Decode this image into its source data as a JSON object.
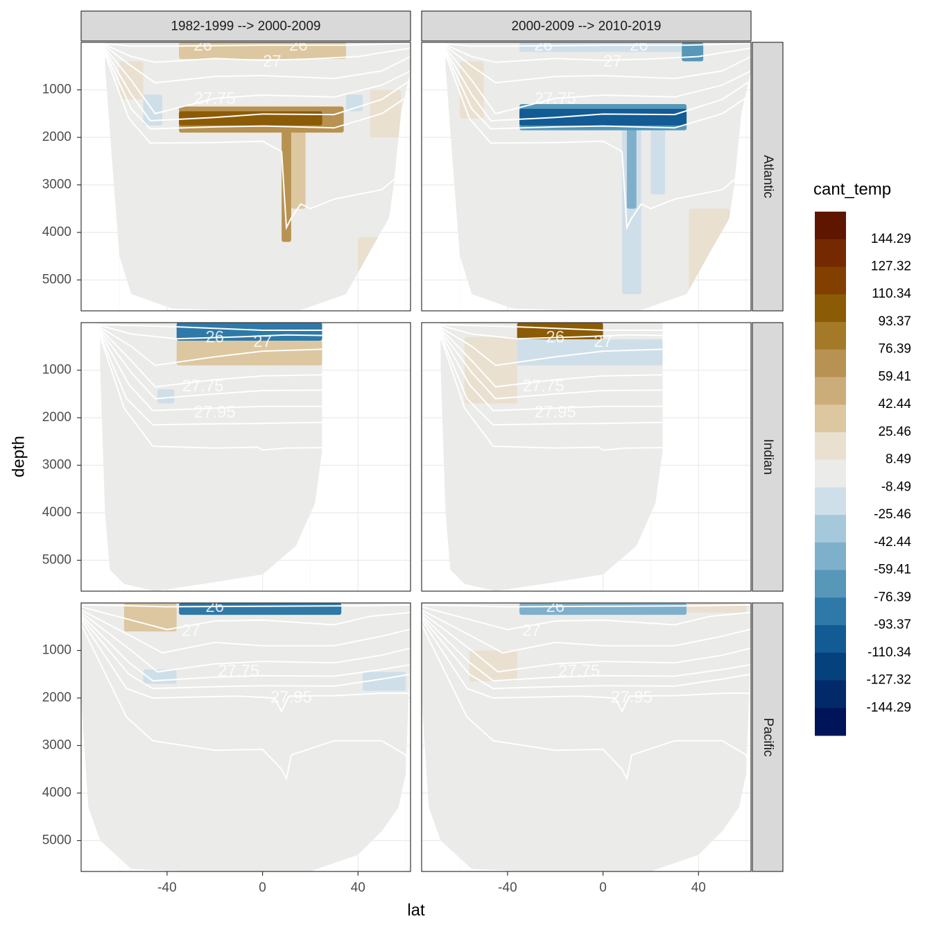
{
  "chart_data": {
    "type": "heatmap",
    "title": "",
    "xlabel": "lat",
    "ylabel": "depth",
    "facet_columns": [
      "1982-1999 --> 2000-2009",
      "2000-2009 --> 2010-2019"
    ],
    "facet_rows": [
      "Atlantic",
      "Indian",
      "Pacific"
    ],
    "x_ticks": [
      "-40",
      "0",
      "40"
    ],
    "x_tick_values": [
      -40,
      0,
      40
    ],
    "xlim": [
      -76,
      62
    ],
    "y_ticks": [
      "1000",
      "2000",
      "3000",
      "4000",
      "5000"
    ],
    "y_tick_values": [
      1000,
      2000,
      3000,
      4000,
      5000
    ],
    "ylim": [
      5650,
      0
    ],
    "isopycnal_labels": [
      "26",
      "27",
      "27.75",
      "27.95"
    ],
    "legend": {
      "title": "cant_temp",
      "position": "right",
      "breaks": [
        "144.29",
        "127.32",
        "110.34",
        "93.37",
        "76.39",
        "59.41",
        "42.44",
        "25.46",
        "8.49",
        "-8.49",
        "-25.46",
        "-42.44",
        "-59.41",
        "-76.39",
        "-93.37",
        "-110.34",
        "-127.32",
        "-144.29"
      ],
      "colors": [
        "#5f1600",
        "#742900",
        "#833f00",
        "#8c5b06",
        "#a47a28",
        "#b89252",
        "#cbad7a",
        "#dcc7a0",
        "#eae0d0",
        "#ebebe9",
        "#cfdfe9",
        "#a6c8db",
        "#7fb0cb",
        "#5797b8",
        "#2f79a8",
        "#125b94",
        "#05417c",
        "#022a6a",
        "#00145a"
      ]
    },
    "panels": [
      {
        "col": 0,
        "row": 0,
        "regions": [
          {
            "lat": [
              -35,
              25
            ],
            "depth": [
              1450,
              1750
            ],
            "value": 110
          },
          {
            "lat": [
              -35,
              34
            ],
            "depth": [
              1350,
              1900
            ],
            "value": 60
          },
          {
            "lat": [
              -35,
              35
            ],
            "depth": [
              0,
              350
            ],
            "value": 35
          },
          {
            "lat": [
              -60,
              -50
            ],
            "depth": [
              400,
              1200
            ],
            "value": 15
          },
          {
            "lat": [
              -50,
              -42
            ],
            "depth": [
              1100,
              1750
            ],
            "value": -15
          },
          {
            "lat": [
              35,
              42
            ],
            "depth": [
              1100,
              1450
            ],
            "value": -12
          },
          {
            "lat": [
              45,
              58
            ],
            "depth": [
              1000,
              2000
            ],
            "value": 15
          },
          {
            "lat": [
              8,
              12
            ],
            "depth": [
              1700,
              4200
            ],
            "value": 60
          },
          {
            "lat": [
              12,
              18
            ],
            "depth": [
              1700,
              3500
            ],
            "value": 40
          },
          {
            "lat": [
              40,
              50
            ],
            "depth": [
              4100,
              5400
            ],
            "value": 15
          }
        ]
      },
      {
        "col": 1,
        "row": 0,
        "regions": [
          {
            "lat": [
              -35,
              35
            ],
            "depth": [
              1400,
              1750
            ],
            "value": -110
          },
          {
            "lat": [
              -35,
              35
            ],
            "depth": [
              1300,
              1850
            ],
            "value": -60
          },
          {
            "lat": [
              -35,
              35
            ],
            "depth": [
              0,
              200
            ],
            "value": -20
          },
          {
            "lat": [
              33,
              42
            ],
            "depth": [
              0,
              400
            ],
            "value": -60
          },
          {
            "lat": [
              -60,
              -50
            ],
            "depth": [
              400,
              1600
            ],
            "value": 15
          },
          {
            "lat": [
              10,
              14
            ],
            "depth": [
              1800,
              3500
            ],
            "value": -50
          },
          {
            "lat": [
              8,
              16
            ],
            "depth": [
              1800,
              5300
            ],
            "value": -15
          },
          {
            "lat": [
              20,
              26
            ],
            "depth": [
              1800,
              3200
            ],
            "value": -15
          },
          {
            "lat": [
              36,
              53
            ],
            "depth": [
              3500,
              5300
            ],
            "value": 15
          }
        ]
      },
      {
        "col": 0,
        "row": 1,
        "regions": [
          {
            "lat": [
              -36,
              25
            ],
            "depth": [
              0,
              380
            ],
            "value": -80
          },
          {
            "lat": [
              -36,
              25
            ],
            "depth": [
              380,
              900
            ],
            "value": 30
          },
          {
            "lat": [
              -44,
              -37
            ],
            "depth": [
              1400,
              1700
            ],
            "value": -15
          }
        ]
      },
      {
        "col": 1,
        "row": 1,
        "regions": [
          {
            "lat": [
              -36,
              0
            ],
            "depth": [
              0,
              350
            ],
            "value": 110
          },
          {
            "lat": [
              -36,
              25
            ],
            "depth": [
              350,
              900
            ],
            "value": -15
          },
          {
            "lat": [
              -58,
              -36
            ],
            "depth": [
              300,
              1700
            ],
            "value": 25
          }
        ]
      },
      {
        "col": 0,
        "row": 2,
        "regions": [
          {
            "lat": [
              -35,
              33
            ],
            "depth": [
              0,
              250
            ],
            "value": -80
          },
          {
            "lat": [
              -58,
              -36
            ],
            "depth": [
              0,
              600
            ],
            "value": 30
          },
          {
            "lat": [
              -50,
              -36
            ],
            "depth": [
              1400,
              1700
            ],
            "value": -15
          },
          {
            "lat": [
              42,
              60
            ],
            "depth": [
              1450,
              1850
            ],
            "value": -15
          }
        ]
      },
      {
        "col": 1,
        "row": 2,
        "regions": [
          {
            "lat": [
              -35,
              35
            ],
            "depth": [
              0,
              250
            ],
            "value": -50
          },
          {
            "lat": [
              35,
              60
            ],
            "depth": [
              0,
              200
            ],
            "value": 25
          },
          {
            "lat": [
              -56,
              -36
            ],
            "depth": [
              1000,
              1650
            ],
            "value": 25
          }
        ]
      }
    ]
  }
}
